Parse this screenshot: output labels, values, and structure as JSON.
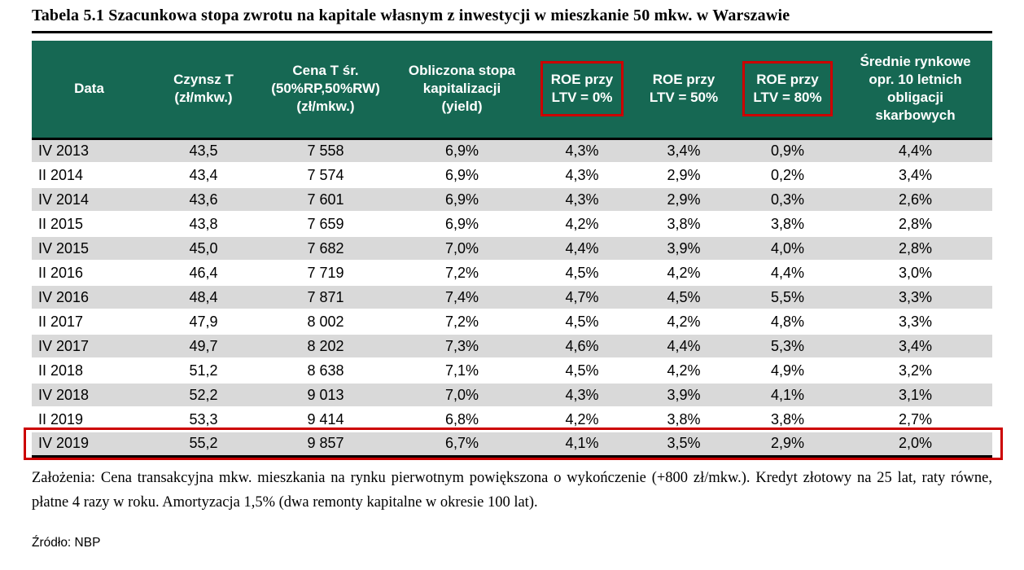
{
  "title": "Tabela 5.1 Szacunkowa stopa zwrotu na kapitale własnym z inwestycji w mieszkanie 50 mkw. w Warszawie",
  "table": {
    "columns": [
      {
        "label": "Data",
        "highlighted": false
      },
      {
        "label": "Czynsz T\n(zł/mkw.)",
        "highlighted": false
      },
      {
        "label": "Cena T śr.\n(50%RP,50%RW)\n(zł/mkw.)",
        "highlighted": false
      },
      {
        "label": "Obliczona stopa\nkapitalizacji\n(yield)",
        "highlighted": false
      },
      {
        "label": "ROE przy\nLTV = 0%",
        "highlighted": true
      },
      {
        "label": "ROE przy\nLTV = 50%",
        "highlighted": false
      },
      {
        "label": "ROE przy\nLTV = 80%",
        "highlighted": true
      },
      {
        "label": "Średnie rynkowe\nopr. 10 letnich\nobligacji\nskarbowych",
        "highlighted": false
      }
    ],
    "rows": [
      {
        "cells": [
          "IV 2013",
          "43,5",
          "7 558",
          "6,9%",
          "4,3%",
          "3,4%",
          "0,9%",
          "4,4%"
        ],
        "highlighted": false
      },
      {
        "cells": [
          "II 2014",
          "43,4",
          "7 574",
          "6,9%",
          "4,3%",
          "2,9%",
          "0,2%",
          "3,4%"
        ],
        "highlighted": false
      },
      {
        "cells": [
          "IV 2014",
          "43,6",
          "7 601",
          "6,9%",
          "4,3%",
          "2,9%",
          "0,3%",
          "2,6%"
        ],
        "highlighted": false
      },
      {
        "cells": [
          "II 2015",
          "43,8",
          "7 659",
          "6,9%",
          "4,2%",
          "3,8%",
          "3,8%",
          "2,8%"
        ],
        "highlighted": false
      },
      {
        "cells": [
          "IV 2015",
          "45,0",
          "7 682",
          "7,0%",
          "4,4%",
          "3,9%",
          "4,0%",
          "2,8%"
        ],
        "highlighted": false
      },
      {
        "cells": [
          "II 2016",
          "46,4",
          "7 719",
          "7,2%",
          "4,5%",
          "4,2%",
          "4,4%",
          "3,0%"
        ],
        "highlighted": false
      },
      {
        "cells": [
          "IV 2016",
          "48,4",
          "7 871",
          "7,4%",
          "4,7%",
          "4,5%",
          "5,5%",
          "3,3%"
        ],
        "highlighted": false
      },
      {
        "cells": [
          "II 2017",
          "47,9",
          "8 002",
          "7,2%",
          "4,5%",
          "4,2%",
          "4,8%",
          "3,3%"
        ],
        "highlighted": false
      },
      {
        "cells": [
          "IV 2017",
          "49,7",
          "8 202",
          "7,3%",
          "4,6%",
          "4,4%",
          "5,3%",
          "3,4%"
        ],
        "highlighted": false
      },
      {
        "cells": [
          "II 2018",
          "51,2",
          "8 638",
          "7,1%",
          "4,5%",
          "4,2%",
          "4,9%",
          "3,2%"
        ],
        "highlighted": false
      },
      {
        "cells": [
          "IV 2018",
          "52,2",
          "9 013",
          "7,0%",
          "4,3%",
          "3,9%",
          "4,1%",
          "3,1%"
        ],
        "highlighted": false
      },
      {
        "cells": [
          "II 2019",
          "53,3",
          "9 414",
          "6,8%",
          "4,2%",
          "3,8%",
          "3,8%",
          "2,7%"
        ],
        "highlighted": false
      },
      {
        "cells": [
          "IV 2019",
          "55,2",
          "9 857",
          "6,7%",
          "4,1%",
          "3,5%",
          "2,9%",
          "2,0%"
        ],
        "highlighted": true
      }
    ]
  },
  "notes": "Założenia: Cena transakcyjna mkw. mieszkania na rynku pierwotnym powiększona o wykończenie (+800 zł/mkw.). Kredyt złotowy na 25 lat, raty równe, płatne 4 razy w roku. Amortyzacja 1,5% (dwa remonty kapitalne w okresie 100 lat).",
  "source": "Źródło: NBP",
  "colors": {
    "header_bg": "#166853",
    "row_stripe": "#d9d9d9",
    "highlight_border": "#cc0000"
  }
}
